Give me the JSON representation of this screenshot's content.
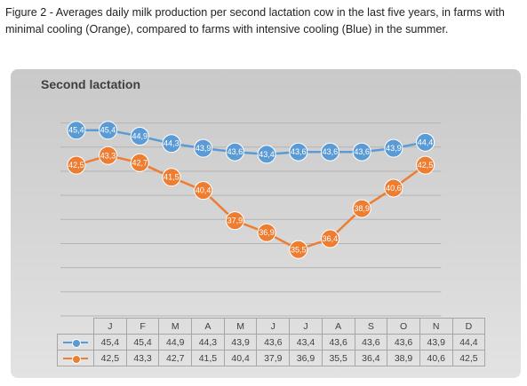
{
  "caption": "Figure 2 - Averages daily milk production per second lactation cow in the last five years, in farms with minimal cooling (Orange), compared to farms with intensive cooling (Blue) in the summer.",
  "chart_data": {
    "type": "line",
    "title": "Second lactation",
    "categories": [
      "J",
      "F",
      "M",
      "A",
      "M",
      "J",
      "J",
      "A",
      "S",
      "O",
      "N",
      "D"
    ],
    "series": [
      {
        "color": "#5b9bd5",
        "values": [
          45.4,
          45.4,
          44.9,
          44.3,
          43.9,
          43.6,
          43.4,
          43.6,
          43.6,
          43.6,
          43.9,
          44.4
        ],
        "labels": [
          "45,4",
          "45,4",
          "44,9",
          "44,3",
          "43,9",
          "43,6",
          "43,4",
          "43,6",
          "43,6",
          "43,6",
          "43,9",
          "44,4"
        ]
      },
      {
        "color": "#ed7d31",
        "values": [
          42.5,
          43.3,
          42.7,
          41.5,
          40.4,
          37.9,
          36.9,
          35.5,
          36.4,
          38.9,
          40.6,
          42.5
        ],
        "labels": [
          "42,5",
          "43,3",
          "42,7",
          "41,5",
          "40,4",
          "37,9",
          "36,9",
          "35,5",
          "36,4",
          "38,9",
          "40,6",
          "42,5"
        ]
      }
    ],
    "ylim": [
      30,
      47
    ],
    "grid": true,
    "legend": "data-table-below",
    "xlabel": "",
    "ylabel": ""
  }
}
